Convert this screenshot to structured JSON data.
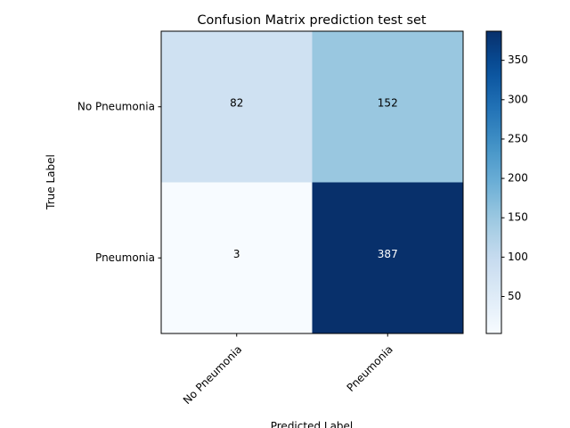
{
  "chart_data": {
    "type": "heatmap",
    "title": "Confusion Matrix prediction test set",
    "xlabel": "Predicted Label",
    "ylabel": "True Label",
    "x_categories": [
      "No Pneumonia",
      "Pneumonia"
    ],
    "y_categories": [
      "No Pneumonia",
      "Pneumonia"
    ],
    "values": [
      [
        82,
        152
      ],
      [
        3,
        387
      ]
    ],
    "colormap": "Blues",
    "colorbar": {
      "range": [
        3,
        387
      ],
      "ticks": [
        50,
        100,
        150,
        200,
        250,
        300,
        350
      ]
    },
    "grid": false
  }
}
